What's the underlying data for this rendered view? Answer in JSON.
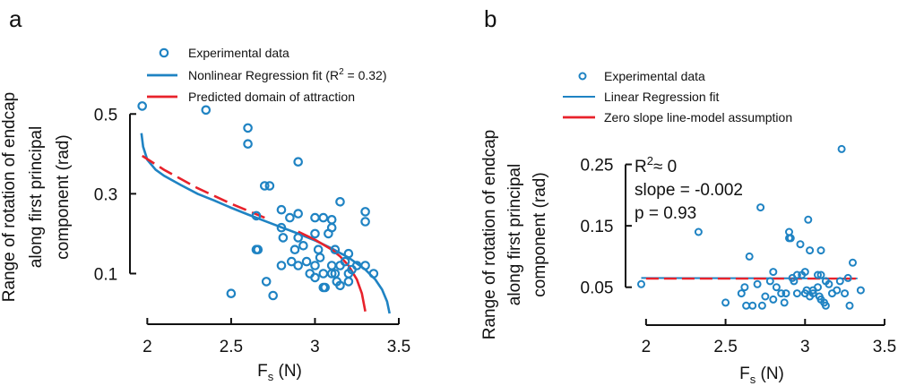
{
  "chart_data": [
    {
      "panel": "a",
      "type": "scatter",
      "xlabel": "F",
      "xlabel_sub": "s",
      "xlabel_unit": " (N)",
      "ylabel_lines": [
        "Range of rotation of endcap",
        "along first principal",
        "component (rad)"
      ],
      "xlim": [
        1.95,
        3.5
      ],
      "ylim": [
        0.0,
        0.55
      ],
      "xticks": [
        2,
        2.5,
        3,
        3.5
      ],
      "yticks": [
        0.1,
        0.3,
        0.5
      ],
      "grid": false,
      "legend_position": "top",
      "colors": {
        "points": "#1f83c3",
        "fit": "#1f83c3",
        "domain": "#e8222b"
      },
      "legend": {
        "points": "Experimental data",
        "fit_prefix": "Nonlinear Regression fit (R",
        "fit_sup": "2",
        "fit_suffix": " = 0.32)",
        "domain": "Predicted domain of attraction"
      },
      "series": [
        {
          "name": "Experimental data",
          "points": [
            [
              1.97,
              0.52
            ],
            [
              2.35,
              0.51
            ],
            [
              2.6,
              0.465
            ],
            [
              2.6,
              0.425
            ],
            [
              2.5,
              0.05
            ],
            [
              2.65,
              0.245
            ],
            [
              2.65,
              0.16
            ],
            [
              2.66,
              0.16
            ],
            [
              2.7,
              0.32
            ],
            [
              2.73,
              0.32
            ],
            [
              2.71,
              0.08
            ],
            [
              2.75,
              0.045
            ],
            [
              2.8,
              0.26
            ],
            [
              2.8,
              0.215
            ],
            [
              2.81,
              0.19
            ],
            [
              2.8,
              0.12
            ],
            [
              2.85,
              0.24
            ],
            [
              2.86,
              0.13
            ],
            [
              2.9,
              0.25
            ],
            [
              2.9,
              0.38
            ],
            [
              2.9,
              0.19
            ],
            [
              2.88,
              0.16
            ],
            [
              2.9,
              0.12
            ],
            [
              2.93,
              0.17
            ],
            [
              2.95,
              0.13
            ],
            [
              2.97,
              0.1
            ],
            [
              3.0,
              0.24
            ],
            [
              3.0,
              0.2
            ],
            [
              3.02,
              0.16
            ],
            [
              3.0,
              0.12
            ],
            [
              3.0,
              0.09
            ],
            [
              3.03,
              0.14
            ],
            [
              3.05,
              0.24
            ],
            [
              3.05,
              0.1
            ],
            [
              3.05,
              0.065
            ],
            [
              3.06,
              0.065
            ],
            [
              3.08,
              0.2
            ],
            [
              3.1,
              0.235
            ],
            [
              3.1,
              0.215
            ],
            [
              3.1,
              0.12
            ],
            [
              3.1,
              0.1
            ],
            [
              3.12,
              0.1
            ],
            [
              3.12,
              0.16
            ],
            [
              3.13,
              0.08
            ],
            [
              3.15,
              0.28
            ],
            [
              3.15,
              0.12
            ],
            [
              3.15,
              0.07
            ],
            [
              3.18,
              0.13
            ],
            [
              3.2,
              0.1
            ],
            [
              3.2,
              0.15
            ],
            [
              3.2,
              0.08
            ],
            [
              3.22,
              0.11
            ],
            [
              3.25,
              0.12
            ],
            [
              3.3,
              0.255
            ],
            [
              3.3,
              0.23
            ],
            [
              3.3,
              0.12
            ],
            [
              3.35,
              0.1
            ]
          ]
        },
        {
          "name": "Nonlinear Regression fit",
          "points": [
            [
              1.965,
              0.452
            ],
            [
              1.975,
              0.418
            ],
            [
              2.0,
              0.385
            ],
            [
              2.05,
              0.36
            ],
            [
              2.1,
              0.345
            ],
            [
              2.2,
              0.322
            ],
            [
              2.3,
              0.3
            ],
            [
              2.4,
              0.283
            ],
            [
              2.5,
              0.265
            ],
            [
              2.6,
              0.248
            ],
            [
              2.7,
              0.232
            ],
            [
              2.8,
              0.216
            ],
            [
              2.9,
              0.2
            ],
            [
              3.0,
              0.183
            ],
            [
              3.1,
              0.163
            ],
            [
              3.2,
              0.14
            ],
            [
              3.3,
              0.11
            ],
            [
              3.36,
              0.085
            ],
            [
              3.4,
              0.06
            ],
            [
              3.43,
              0.03
            ],
            [
              3.445,
              0.0
            ]
          ]
        },
        {
          "name": "Predicted domain of attraction",
          "points": [
            [
              1.97,
              0.395
            ],
            [
              2.1,
              0.36
            ],
            [
              2.3,
              0.314
            ],
            [
              2.5,
              0.275
            ],
            [
              2.7,
              0.24
            ],
            [
              2.9,
              0.205
            ],
            [
              3.0,
              0.185
            ],
            [
              3.1,
              0.16
            ],
            [
              3.15,
              0.143
            ],
            [
              3.2,
              0.12
            ],
            [
              3.25,
              0.085
            ],
            [
              3.28,
              0.05
            ],
            [
              3.3,
              0.005
            ]
          ],
          "dashed_until_x": 2.88
        }
      ]
    },
    {
      "panel": "b",
      "type": "scatter",
      "xlabel": "F",
      "xlabel_sub": "s",
      "xlabel_unit": " (N)",
      "ylabel_lines": [
        "Range of rotation of endcap",
        "along first principal",
        "component (rad)"
      ],
      "xlim": [
        1.95,
        3.5
      ],
      "ylim": [
        0.0,
        0.28
      ],
      "xticks": [
        2,
        2.5,
        3,
        3.5
      ],
      "yticks": [
        0.05,
        0.15,
        0.25
      ],
      "grid": false,
      "legend_position": "top",
      "colors": {
        "points": "#1f83c3",
        "fit": "#1f83c3",
        "zero": "#e8222b"
      },
      "legend": {
        "points": "Experimental data",
        "fit": "Linear Regression fit",
        "zero": "Zero slope line-model assumption"
      },
      "stats": {
        "r2_prefix": "R",
        "r2_sup": "2",
        "r2_suffix": "≈ 0",
        "slope": "slope = -0.002",
        "p": "p = 0.93"
      },
      "series": [
        {
          "name": "Experimental data",
          "points": [
            [
              1.97,
              0.055
            ],
            [
              2.33,
              0.14
            ],
            [
              2.5,
              0.025
            ],
            [
              2.6,
              0.04
            ],
            [
              2.62,
              0.05
            ],
            [
              2.63,
              0.02
            ],
            [
              2.65,
              0.1
            ],
            [
              2.67,
              0.02
            ],
            [
              2.7,
              0.055
            ],
            [
              2.72,
              0.18
            ],
            [
              2.73,
              0.02
            ],
            [
              2.75,
              0.035
            ],
            [
              2.78,
              0.06
            ],
            [
              2.8,
              0.075
            ],
            [
              2.8,
              0.03
            ],
            [
              2.82,
              0.05
            ],
            [
              2.85,
              0.04
            ],
            [
              2.87,
              0.025
            ],
            [
              2.88,
              0.04
            ],
            [
              2.9,
              0.14
            ],
            [
              2.9,
              0.13
            ],
            [
              2.91,
              0.13
            ],
            [
              2.92,
              0.065
            ],
            [
              2.93,
              0.06
            ],
            [
              2.95,
              0.04
            ],
            [
              2.95,
              0.07
            ],
            [
              2.97,
              0.12
            ],
            [
              2.98,
              0.07
            ],
            [
              3.0,
              0.075
            ],
            [
              3.0,
              0.04
            ],
            [
              3.01,
              0.045
            ],
            [
              3.02,
              0.16
            ],
            [
              3.03,
              0.11
            ],
            [
              3.03,
              0.035
            ],
            [
              3.05,
              0.045
            ],
            [
              3.05,
              0.04
            ],
            [
              3.08,
              0.05
            ],
            [
              3.08,
              0.07
            ],
            [
              3.09,
              0.035
            ],
            [
              3.1,
              0.03
            ],
            [
              3.1,
              0.07
            ],
            [
              3.1,
              0.11
            ],
            [
              3.12,
              0.025
            ],
            [
              3.13,
              0.02
            ],
            [
              3.13,
              0.06
            ],
            [
              3.15,
              0.055
            ],
            [
              3.17,
              0.04
            ],
            [
              3.2,
              0.045
            ],
            [
              3.22,
              0.06
            ],
            [
              3.23,
              0.275
            ],
            [
              3.25,
              0.04
            ],
            [
              3.27,
              0.065
            ],
            [
              3.28,
              0.02
            ],
            [
              3.3,
              0.09
            ],
            [
              3.35,
              0.045
            ]
          ]
        },
        {
          "name": "Linear Regression fit",
          "points": [
            [
              1.97,
              0.065
            ],
            [
              3.33,
              0.0645
            ]
          ]
        },
        {
          "name": "Zero slope line-model assumption",
          "points": [
            [
              2.0,
              0.064
            ],
            [
              3.33,
              0.064
            ]
          ]
        }
      ]
    }
  ],
  "panels": {
    "a_letter": "a",
    "b_letter": "b"
  }
}
